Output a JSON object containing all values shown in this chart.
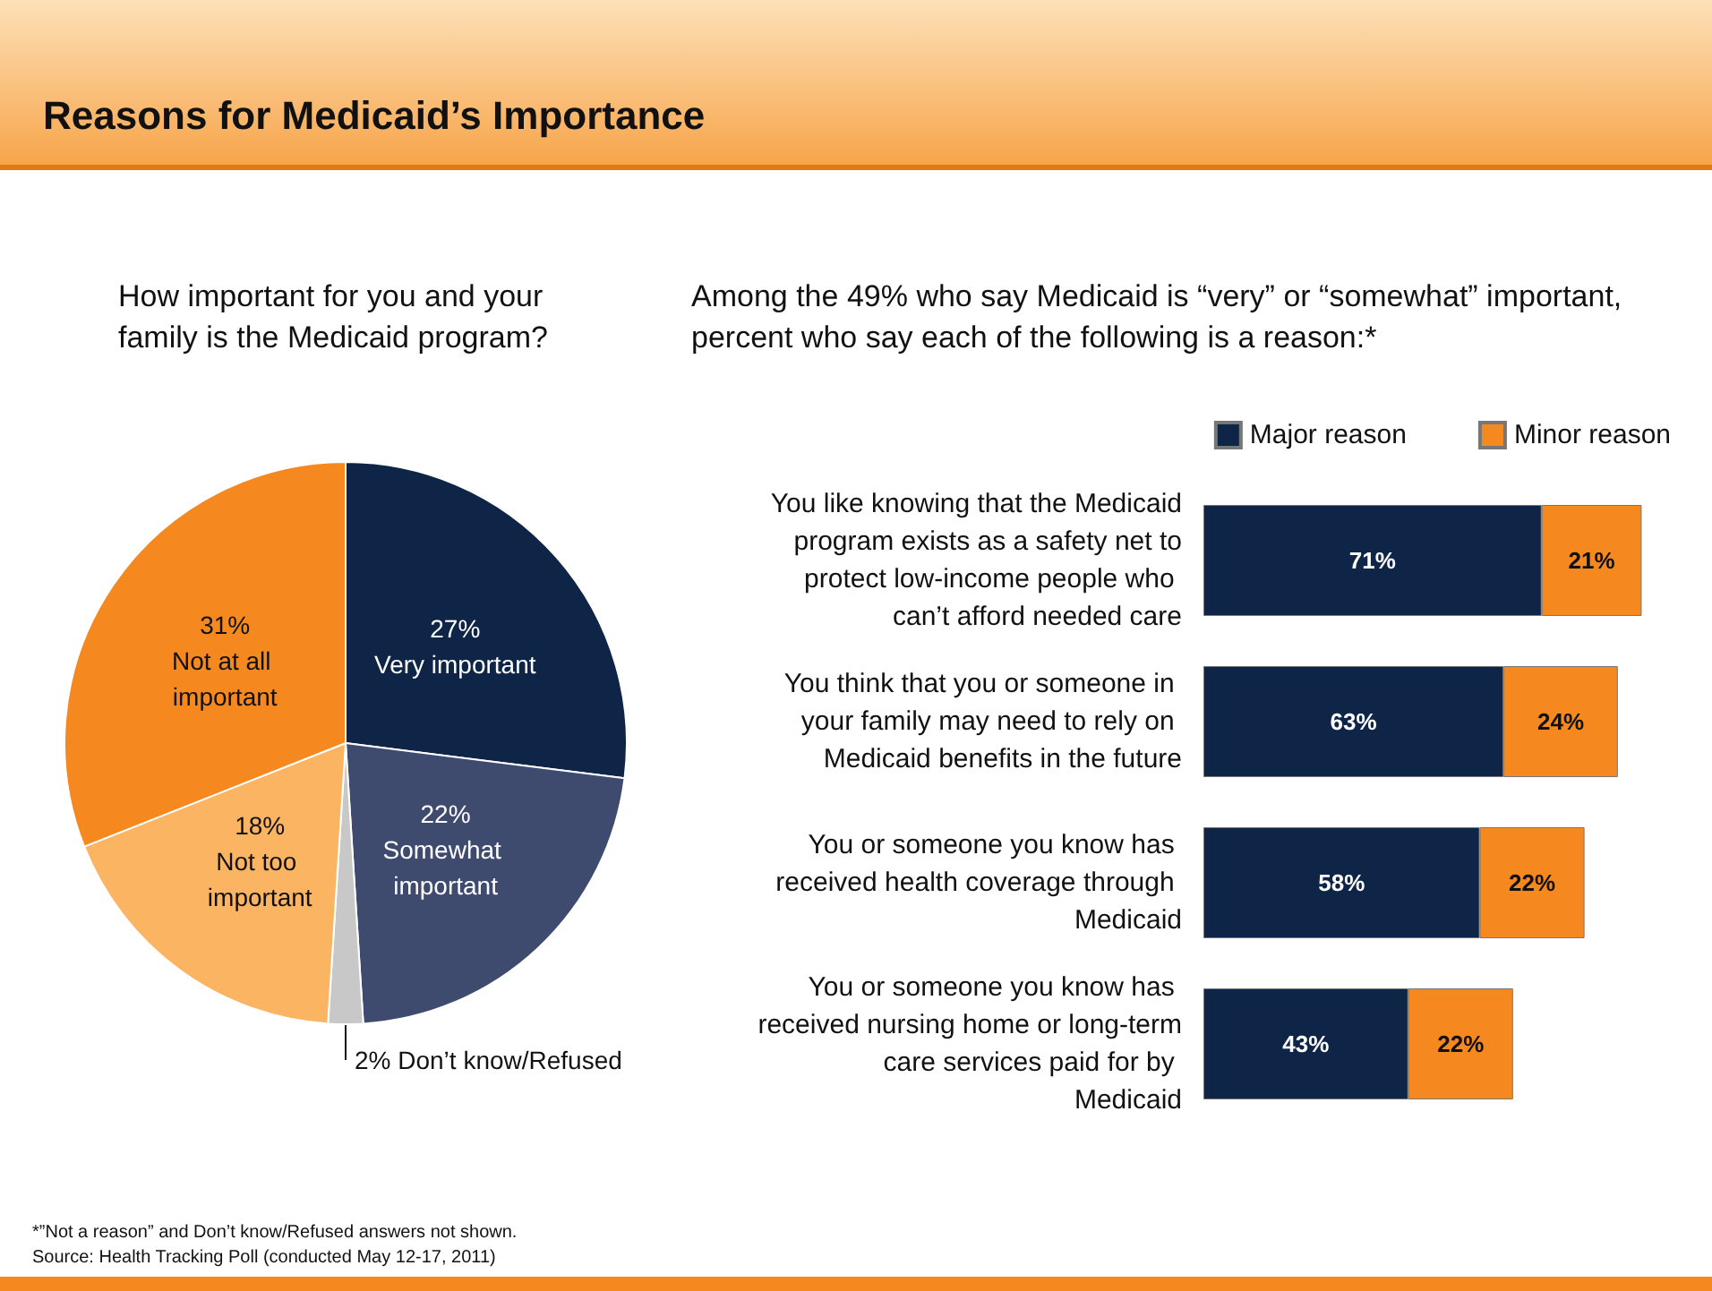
{
  "chart_data": [
    {
      "type": "pie",
      "title": "Reasons for Medicaid’s Importance",
      "subtitle": "How important for you and your family is the Medicaid program?",
      "categories": [
        "Very important",
        "Somewhat important",
        "Don’t know/Refused",
        "Not too important",
        "Not at all important"
      ],
      "values": [
        27,
        22,
        2,
        18,
        31
      ],
      "value_labels": [
        "27%",
        "22%",
        "2%",
        "18%",
        "31%"
      ],
      "colors": [
        "#0f2548",
        "#3f4b6e",
        "#c8c8c8",
        "#fbb461",
        "#f5891f"
      ],
      "data_labels": true,
      "legend": false
    },
    {
      "type": "bar",
      "orientation": "horizontal",
      "stacked": true,
      "tick_labels": "y",
      "title": "Among the 49% who say Medicaid is “very” or “somewhat” important, percent who say each of the following is a reason:*",
      "categories": [
        "You like knowing that the Medicaid program exists as a safety net to protect low-income people who can’t afford needed care",
        "You think that you or someone in your family may need to rely on Medicaid benefits in the future",
        "You or someone you know has received health coverage through Medicaid",
        "You or someone you know has received nursing home or long-term care services paid for by Medicaid"
      ],
      "series": [
        {
          "name": "Major reason",
          "color": "#0f2548",
          "values": [
            71,
            63,
            58,
            43
          ],
          "value_labels": [
            "71%",
            "63%",
            "58%",
            "43%"
          ]
        },
        {
          "name": "Minor reason",
          "color": "#f5891f",
          "values": [
            21,
            24,
            22,
            22
          ],
          "value_labels": [
            "21%",
            "24%",
            "22%",
            "22%"
          ]
        }
      ],
      "data_labels": true,
      "legend": "top right",
      "annotations": [
        "*”Not a reason” and Don’t know/Refused answers not shown.",
        "Source: Health Tracking Poll (conducted May 12-17, 2011)"
      ]
    }
  ]
}
